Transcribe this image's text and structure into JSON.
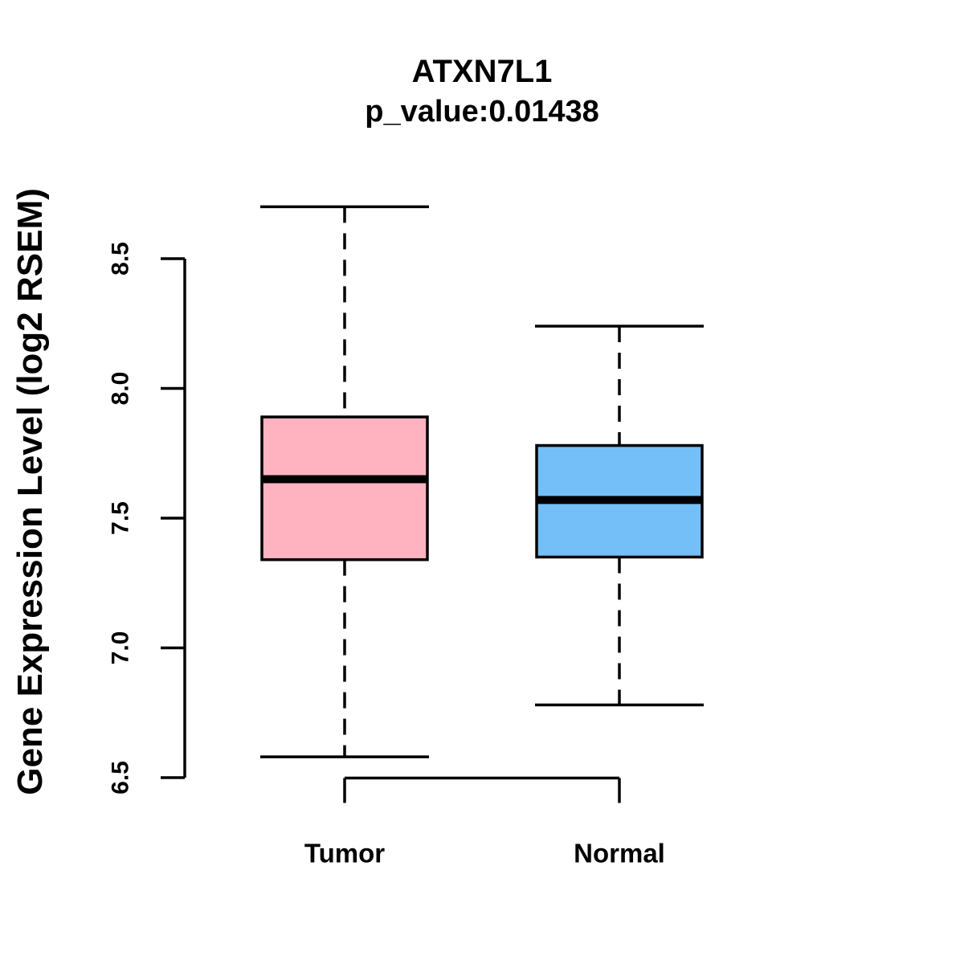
{
  "chart_data": {
    "type": "boxplot",
    "title": "ATXN7L1",
    "subtitle": "p_value:0.01438",
    "ylabel": "Gene Expression Level (log2 RSEM)",
    "xlabel": "",
    "categories": [
      "Tumor",
      "Normal"
    ],
    "series": [
      {
        "name": "Tumor",
        "color": "#ffb3c1",
        "whisker_low": 6.58,
        "q1": 7.34,
        "median": 7.65,
        "q3": 7.89,
        "whisker_high": 8.7
      },
      {
        "name": "Normal",
        "color": "#74bff7",
        "whisker_low": 6.78,
        "q1": 7.35,
        "median": 7.57,
        "q3": 7.78,
        "whisker_high": 8.24
      }
    ],
    "yticks": [
      "6.5",
      "7.0",
      "7.5",
      "8.0",
      "8.5"
    ],
    "ylim": [
      6.4,
      8.78
    ],
    "grid": false,
    "legend": "none",
    "axis_color": "#000000"
  }
}
